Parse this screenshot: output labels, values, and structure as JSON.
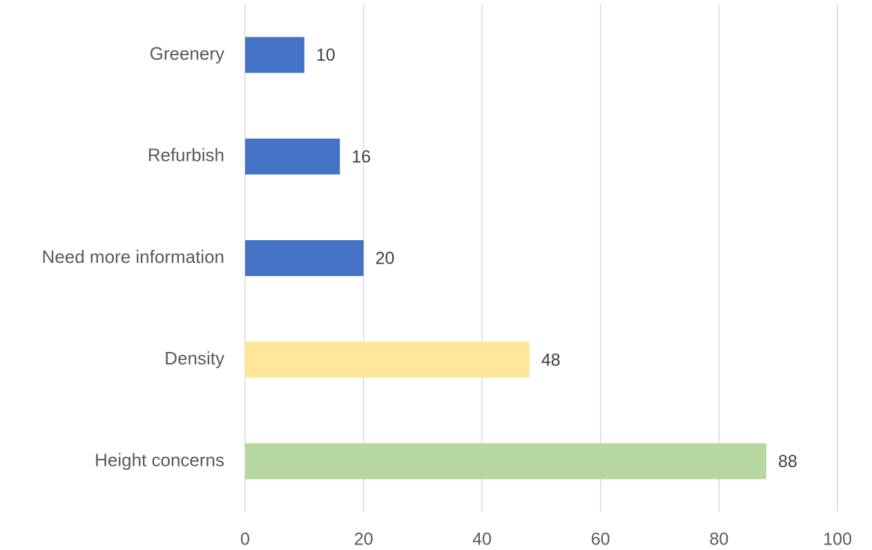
{
  "chart_data": {
    "type": "barh",
    "categories": [
      "Greenery",
      "Refurbish",
      "Need more information",
      "Density",
      "Height concerns"
    ],
    "values": [
      10,
      16,
      20,
      48,
      88
    ],
    "colors": [
      "#4472c4",
      "#4472c4",
      "#4472c4",
      "#ffe699",
      "#b7d7a0"
    ],
    "xlim": [
      0,
      100
    ],
    "xticks": [
      0,
      20,
      40,
      60,
      80,
      100
    ],
    "grid": true
  }
}
